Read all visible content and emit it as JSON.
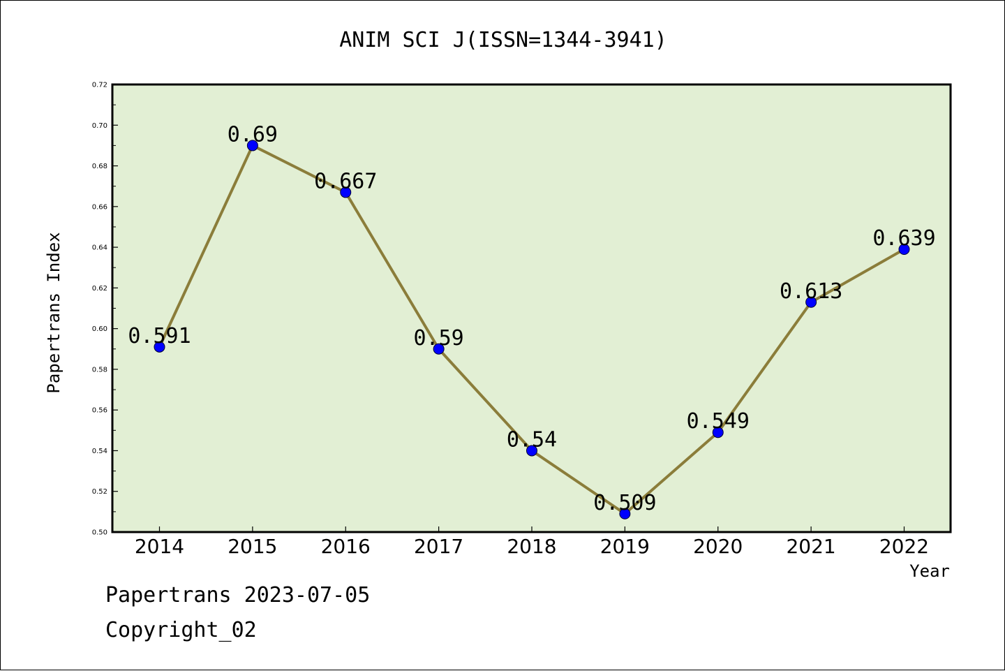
{
  "chart_data": {
    "type": "line",
    "title": "ANIM SCI J(ISSN=1344-3941)",
    "xlabel": "Year",
    "ylabel": "Papertrans Index",
    "x": [
      "2014",
      "2015",
      "2016",
      "2017",
      "2018",
      "2019",
      "2020",
      "2021",
      "2022"
    ],
    "values": [
      0.591,
      0.69,
      0.667,
      0.59,
      0.54,
      0.509,
      0.549,
      0.613,
      0.639
    ],
    "data_labels": [
      "0.591",
      "0.69",
      "0.667",
      "0.59",
      "0.54",
      "0.509",
      "0.549",
      "0.613",
      "0.639"
    ],
    "ylim": [
      0.5,
      0.72
    ],
    "yticks": [
      "0.50",
      "0.52",
      "0.54",
      "0.56",
      "0.58",
      "0.60",
      "0.62",
      "0.64",
      "0.66",
      "0.68",
      "0.70",
      "0.72"
    ],
    "grid": false,
    "colors": {
      "plot_background": "#e2efd4",
      "line": "#8b7d3a",
      "marker": "#0000ff"
    }
  },
  "footer": {
    "line1": "Papertrans 2023-07-05",
    "line2": "Copyright_02"
  }
}
